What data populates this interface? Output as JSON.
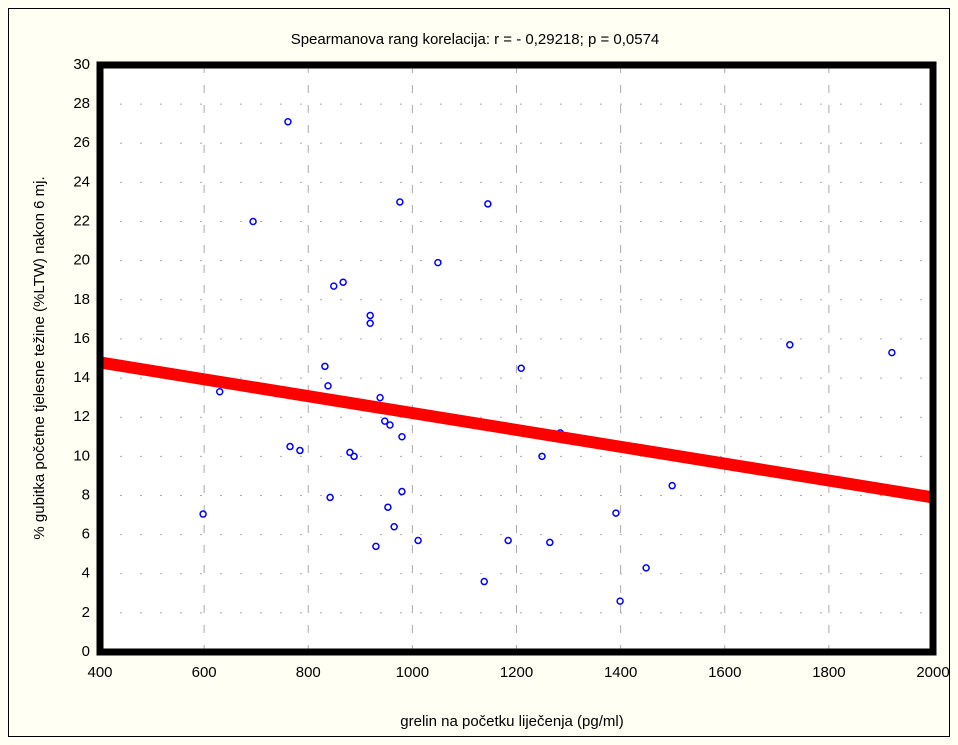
{
  "chart_data": {
    "type": "scatter",
    "title": "Spearmanova rang korelacija: r = - 0,29218; p = 0,0574",
    "x_label": "grelin na početku liječenja (pg/ml)",
    "y_label": "% gubitka početne tjelesne težine (%LTW) nakon 6 mj.",
    "xlim": [
      400,
      2000
    ],
    "ylim": [
      0,
      30
    ],
    "xticks": [
      400,
      600,
      800,
      1000,
      1200,
      1400,
      1600,
      1800,
      2000
    ],
    "yticks": [
      0,
      2,
      4,
      6,
      8,
      10,
      12,
      14,
      16,
      18,
      20,
      22,
      24,
      26,
      28,
      30
    ],
    "grid": true,
    "color": "#0000ff",
    "x": [
      598,
      630,
      694,
      761,
      765,
      784,
      832,
      838,
      842,
      849,
      867,
      880,
      888,
      919,
      919,
      930,
      938,
      947,
      957,
      953,
      965,
      976,
      980,
      980,
      1011,
      1049,
      1138,
      1145,
      1184,
      1209,
      1249,
      1264,
      1284,
      1391,
      1399,
      1449,
      1499,
      1725,
      1921
    ],
    "values": [
      7.05,
      13.3,
      22.0,
      27.1,
      10.5,
      10.3,
      14.6,
      13.6,
      7.9,
      18.7,
      18.9,
      10.2,
      10.0,
      17.2,
      16.8,
      5.4,
      13.0,
      11.8,
      11.6,
      7.4,
      6.4,
      23.0,
      8.2,
      11.0,
      5.7,
      19.9,
      3.6,
      22.9,
      5.7,
      14.5,
      10.0,
      5.6,
      11.2,
      7.1,
      2.6,
      4.3,
      8.5,
      15.7,
      15.3
    ],
    "trendline": {
      "color": "#ff0000",
      "x": [
        400,
        2000
      ],
      "values": [
        14.8,
        7.9
      ]
    }
  }
}
